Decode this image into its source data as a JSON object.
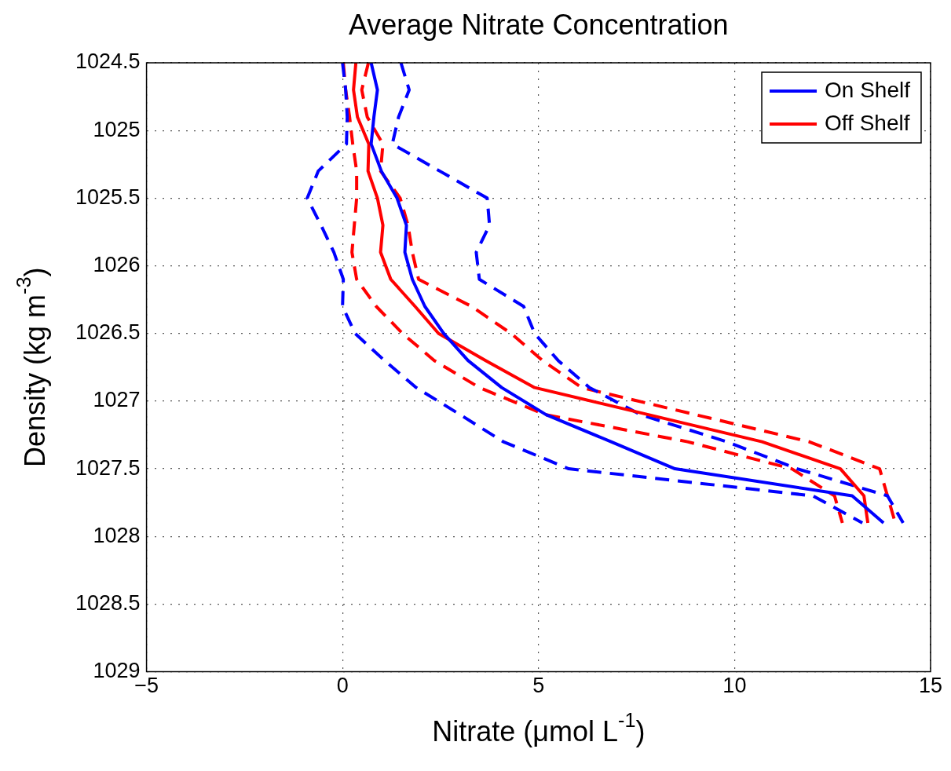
{
  "chart_data": {
    "type": "line",
    "title": "Average Nitrate Concentration",
    "xlabel": "Nitrate (μmol L$^{-1}$)",
    "ylabel": "Density (kg m$^{-3}$)",
    "xlim": [
      -5,
      15
    ],
    "xticks": [
      {
        "value": -5,
        "label": "−5"
      },
      0,
      5,
      10,
      15
    ],
    "ylim": [
      1029,
      1024.5
    ],
    "yticks": [
      1024.5,
      1025,
      1025.5,
      1026,
      1026.5,
      1027,
      1027.5,
      1028,
      1028.5,
      1029
    ],
    "grid": true,
    "legend": "top right",
    "marker": "none",
    "series": [
      {
        "name": "On Shelf",
        "color": "#0000ff",
        "line_style": "solid",
        "x": [
          0.73,
          0.89,
          0.8,
          0.73,
          0.99,
          1.39,
          1.63,
          1.59,
          1.78,
          2.1,
          2.58,
          3.2,
          4.06,
          5.19,
          6.85,
          8.48,
          13.0,
          13.8
        ],
        "values": [
          1024.5,
          1024.7,
          1024.9,
          1025.1,
          1025.3,
          1025.5,
          1025.7,
          1025.9,
          1026.1,
          1026.3,
          1026.5,
          1026.7,
          1026.9,
          1027.1,
          1027.3,
          1027.5,
          1027.7,
          1027.9
        ]
      },
      {
        "name": "Off Shelf",
        "color": "#ff0000",
        "line_style": "solid",
        "x": [
          0.34,
          0.28,
          0.38,
          0.67,
          0.65,
          0.89,
          1.03,
          0.97,
          1.23,
          1.85,
          2.45,
          3.65,
          4.9,
          7.8,
          10.7,
          12.7,
          13.3,
          13.4
        ],
        "values": [
          1024.5,
          1024.7,
          1024.9,
          1025.1,
          1025.3,
          1025.5,
          1025.7,
          1025.9,
          1026.1,
          1026.3,
          1026.5,
          1026.7,
          1026.9,
          1027.1,
          1027.3,
          1027.5,
          1027.7,
          1027.9
        ]
      },
      {
        "color": "#0000ff",
        "line_style": "dashed",
        "x": [
          0.0,
          0.08,
          0.12,
          0.1,
          -0.62,
          -0.9,
          -0.55,
          -0.22,
          0.02,
          0.0,
          0.32,
          1.07,
          1.88,
          3.0,
          4.1,
          5.77,
          12.0,
          13.26
        ],
        "values": [
          1024.5,
          1024.7,
          1024.9,
          1025.1,
          1025.3,
          1025.5,
          1025.7,
          1025.9,
          1026.1,
          1026.3,
          1026.5,
          1026.7,
          1026.9,
          1027.1,
          1027.3,
          1027.5,
          1027.7,
          1027.9
        ]
      },
      {
        "color": "#0000ff",
        "line_style": "dashed",
        "x": [
          1.49,
          1.7,
          1.43,
          1.27,
          2.48,
          3.69,
          3.75,
          3.41,
          3.49,
          4.62,
          4.9,
          5.5,
          6.3,
          7.6,
          9.8,
          11.6,
          13.9,
          14.3
        ],
        "values": [
          1024.5,
          1024.7,
          1024.9,
          1025.1,
          1025.3,
          1025.5,
          1025.7,
          1025.9,
          1026.1,
          1026.3,
          1026.5,
          1026.7,
          1026.9,
          1027.1,
          1027.3,
          1027.5,
          1027.7,
          1027.9
        ]
      },
      {
        "color": "#ff0000",
        "line_style": "dashed",
        "x": [
          0.02,
          0.08,
          0.18,
          0.26,
          0.36,
          0.36,
          0.3,
          0.24,
          0.36,
          0.86,
          1.53,
          2.34,
          3.49,
          5.17,
          8.8,
          11.46,
          12.55,
          12.75
        ],
        "values": [
          1024.5,
          1024.7,
          1024.9,
          1025.1,
          1025.3,
          1025.5,
          1025.7,
          1025.9,
          1026.1,
          1026.3,
          1026.5,
          1026.7,
          1026.9,
          1027.1,
          1027.3,
          1027.5,
          1027.7,
          1027.9
        ]
      },
      {
        "color": "#ff0000",
        "line_style": "dashed",
        "x": [
          0.66,
          0.49,
          0.63,
          1.03,
          0.97,
          1.47,
          1.67,
          1.78,
          1.94,
          3.29,
          4.3,
          5.1,
          6.1,
          9.0,
          11.9,
          13.7,
          13.9,
          14.1
        ],
        "values": [
          1024.5,
          1024.7,
          1024.9,
          1025.1,
          1025.3,
          1025.5,
          1025.7,
          1025.9,
          1026.1,
          1026.3,
          1026.5,
          1026.7,
          1026.9,
          1027.1,
          1027.3,
          1027.5,
          1027.7,
          1027.9
        ]
      }
    ]
  }
}
